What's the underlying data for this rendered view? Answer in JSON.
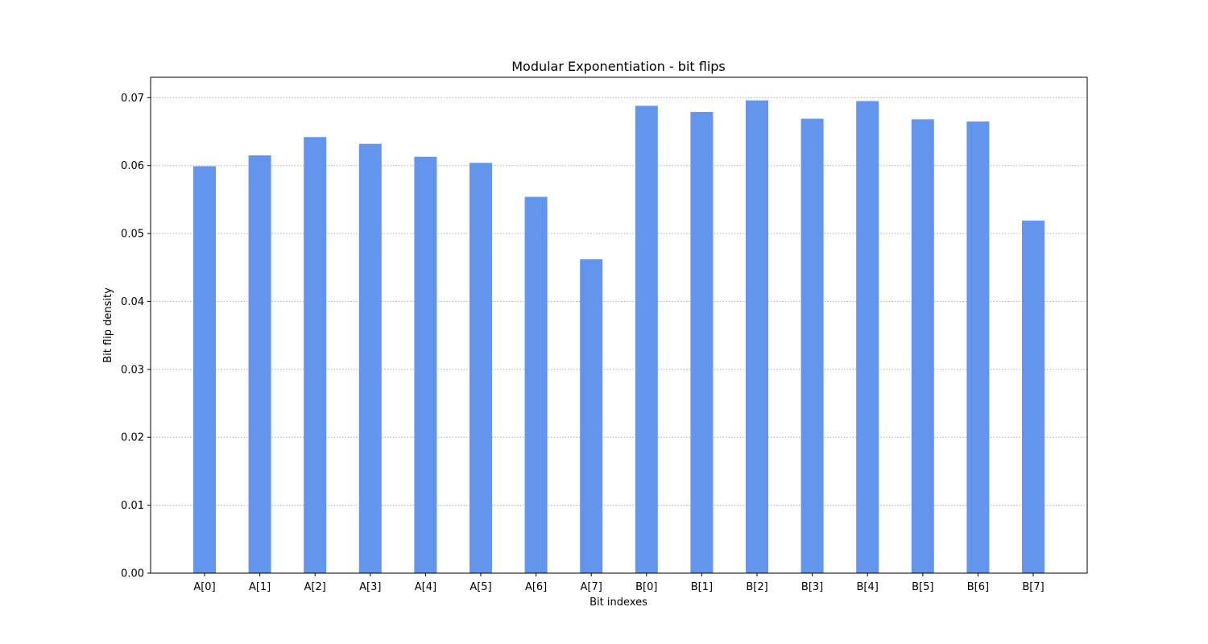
{
  "chart_data": {
    "type": "bar",
    "title": "Modular Exponentiation - bit flips",
    "xlabel": "Bit indexes",
    "ylabel": "Bit flip density",
    "categories": [
      "A[0]",
      "A[1]",
      "A[2]",
      "A[3]",
      "A[4]",
      "A[5]",
      "A[6]",
      "A[7]",
      "B[0]",
      "B[1]",
      "B[2]",
      "B[3]",
      "B[4]",
      "B[5]",
      "B[6]",
      "B[7]"
    ],
    "values": [
      0.0599,
      0.0615,
      0.0642,
      0.0632,
      0.0613,
      0.0604,
      0.0554,
      0.0462,
      0.0688,
      0.0679,
      0.0696,
      0.0669,
      0.0695,
      0.0668,
      0.0665,
      0.0519
    ],
    "ylim": [
      0,
      0.073
    ],
    "yticks": [
      0.0,
      0.01,
      0.02,
      0.03,
      0.04,
      0.05,
      0.06,
      0.07
    ],
    "ytick_labels": [
      "0.00",
      "0.01",
      "0.02",
      "0.03",
      "0.04",
      "0.05",
      "0.06",
      "0.07"
    ],
    "grid": "y-dotted",
    "legend": "none",
    "bar_color": "#6495ed"
  }
}
